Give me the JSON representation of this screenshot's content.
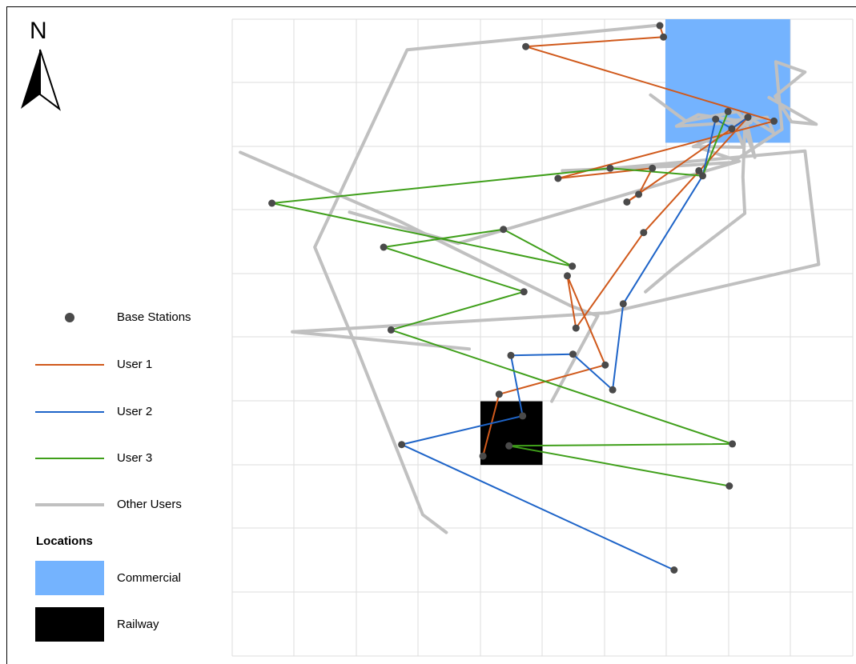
{
  "north_label": "N",
  "legend": {
    "base_stations": "Base Stations",
    "user1": "User 1",
    "user2": "User 2",
    "user3": "User 3",
    "other_users": "Other Users",
    "locations_title": "Locations",
    "commercial": "Commercial",
    "railway": "Railway"
  },
  "colors": {
    "user1": "#d0591b",
    "user2": "#1e64c8",
    "user3": "#3f9f1a",
    "other": "#c0c0c0",
    "station": "#4a4a4a",
    "commercial": "#74b3fe",
    "railway": "#000000",
    "grid": "#dddddd"
  },
  "chart_data": {
    "type": "scatter",
    "title": "",
    "xlabel": "",
    "ylabel": "",
    "grid": true,
    "legend_position": "left",
    "xlim": [
      0,
      100
    ],
    "ylim": [
      0,
      100
    ],
    "locations": [
      {
        "name": "Commercial",
        "x0": 69.8,
        "x1": 89.9,
        "y0": 80.6,
        "y1": 100
      },
      {
        "name": "Railway",
        "x0": 40.0,
        "x1": 50.0,
        "y0": 30.0,
        "y1": 40.0
      }
    ],
    "base_stations": [
      [
        69.5,
        97.2
      ],
      [
        68.9,
        99.0
      ],
      [
        47.3,
        95.7
      ],
      [
        79.9,
        85.5
      ],
      [
        83.1,
        84.6
      ],
      [
        77.9,
        84.3
      ],
      [
        80.5,
        82.8
      ],
      [
        87.3,
        84.0
      ],
      [
        75.2,
        76.2
      ],
      [
        75.8,
        75.4
      ],
      [
        67.7,
        76.6
      ],
      [
        60.9,
        76.6
      ],
      [
        52.5,
        75.0
      ],
      [
        65.5,
        72.5
      ],
      [
        63.6,
        71.3
      ],
      [
        6.4,
        71.1
      ],
      [
        66.3,
        66.5
      ],
      [
        43.7,
        67.0
      ],
      [
        24.4,
        64.2
      ],
      [
        54.8,
        61.2
      ],
      [
        54.0,
        59.7
      ],
      [
        47.0,
        57.2
      ],
      [
        63.0,
        55.3
      ],
      [
        55.4,
        51.5
      ],
      [
        25.6,
        51.2
      ],
      [
        44.9,
        47.2
      ],
      [
        54.9,
        47.4
      ],
      [
        60.1,
        45.7
      ],
      [
        61.3,
        41.8
      ],
      [
        43.0,
        41.1
      ],
      [
        46.8,
        37.7
      ],
      [
        27.3,
        33.2
      ],
      [
        44.6,
        33.0
      ],
      [
        40.4,
        31.4
      ],
      [
        80.6,
        33.3
      ],
      [
        80.1,
        26.7
      ],
      [
        71.2,
        13.5
      ]
    ],
    "series": [
      {
        "name": "User 1",
        "points": [
          [
            68.9,
            99.0
          ],
          [
            69.5,
            97.2
          ],
          [
            47.3,
            95.7
          ],
          [
            87.3,
            84.0
          ],
          [
            52.5,
            75.0
          ],
          [
            67.7,
            76.6
          ],
          [
            65.5,
            72.5
          ],
          [
            63.6,
            71.3
          ],
          [
            83.1,
            84.6
          ],
          [
            66.3,
            66.5
          ],
          [
            55.4,
            51.5
          ],
          [
            54.0,
            59.7
          ],
          [
            60.1,
            45.7
          ],
          [
            43.0,
            41.1
          ],
          [
            40.4,
            31.4
          ]
        ]
      },
      {
        "name": "User 2",
        "points": [
          [
            71.2,
            13.5
          ],
          [
            27.3,
            33.2
          ],
          [
            46.8,
            37.7
          ],
          [
            44.9,
            47.2
          ],
          [
            54.9,
            47.4
          ],
          [
            61.3,
            41.8
          ],
          [
            63.0,
            55.3
          ],
          [
            75.8,
            75.4
          ],
          [
            77.9,
            84.3
          ],
          [
            80.5,
            82.8
          ],
          [
            83.1,
            84.6
          ]
        ]
      },
      {
        "name": "User 3",
        "points": [
          [
            80.1,
            26.7
          ],
          [
            44.6,
            33.0
          ],
          [
            80.6,
            33.3
          ],
          [
            25.6,
            51.2
          ],
          [
            47.0,
            57.2
          ],
          [
            24.4,
            64.2
          ],
          [
            43.7,
            67.0
          ],
          [
            54.8,
            61.2
          ],
          [
            6.4,
            71.1
          ],
          [
            60.9,
            76.6
          ],
          [
            75.8,
            75.4
          ],
          [
            79.9,
            85.5
          ]
        ]
      },
      {
        "name": "Other Users",
        "paths": [
          [
            [
              68.1,
              99.0
            ],
            [
              28.2,
              95.2
            ],
            [
              13.3,
              64.2
            ],
            [
              20.3,
              47.8
            ],
            [
              30.7,
              22.2
            ],
            [
              34.5,
              19.4
            ]
          ],
          [
            [
              1.3,
              79.1
            ],
            [
              26.9,
              68.3
            ],
            [
              54.5,
              55.0
            ],
            [
              58.9,
              53.4
            ],
            [
              51.5,
              40.0
            ]
          ],
          [
            [
              18.9,
              69.7
            ],
            [
              36.4,
              64.8
            ],
            [
              81.7,
              77.7
            ],
            [
              75.6,
              79.7
            ]
          ],
          [
            [
              9.7,
              50.9
            ],
            [
              60.5,
              53.9
            ],
            [
              94.5,
              61.5
            ],
            [
              92.3,
              79.3
            ],
            [
              60.5,
              76.5
            ],
            [
              53.2,
              76.2
            ],
            [
              70.6,
              76.9
            ],
            [
              80.5,
              77.5
            ],
            [
              88.6,
              82.7
            ],
            [
              87.6,
              93.3
            ],
            [
              92.3,
              91.7
            ],
            [
              87.5,
              87.9
            ],
            [
              90.1,
              83.9
            ],
            [
              94.1,
              83.5
            ],
            [
              86.5,
              87.7
            ]
          ],
          [
            [
              9.7,
              50.9
            ],
            [
              38.2,
              48.2
            ]
          ],
          [
            [
              67.4,
              88.1
            ],
            [
              73.1,
              84.0
            ],
            [
              81.4,
              85.5
            ],
            [
              82.8,
              83.9
            ],
            [
              71.6,
              83.2
            ],
            [
              75.1,
              85.0
            ],
            [
              83.6,
              83.8
            ],
            [
              74.3,
              80.0
            ],
            [
              82.4,
              79.9
            ],
            [
              80.7,
              84.1
            ],
            [
              86.2,
              84.6
            ],
            [
              87.2,
              82.2
            ],
            [
              82.6,
              85.0
            ],
            [
              84.2,
              78.3
            ],
            [
              82.6,
              82.8
            ],
            [
              82.3,
              75.2
            ],
            [
              82.6,
              69.5
            ],
            [
              71.1,
              60.9
            ],
            [
              66.6,
              57.2
            ]
          ]
        ]
      }
    ]
  }
}
